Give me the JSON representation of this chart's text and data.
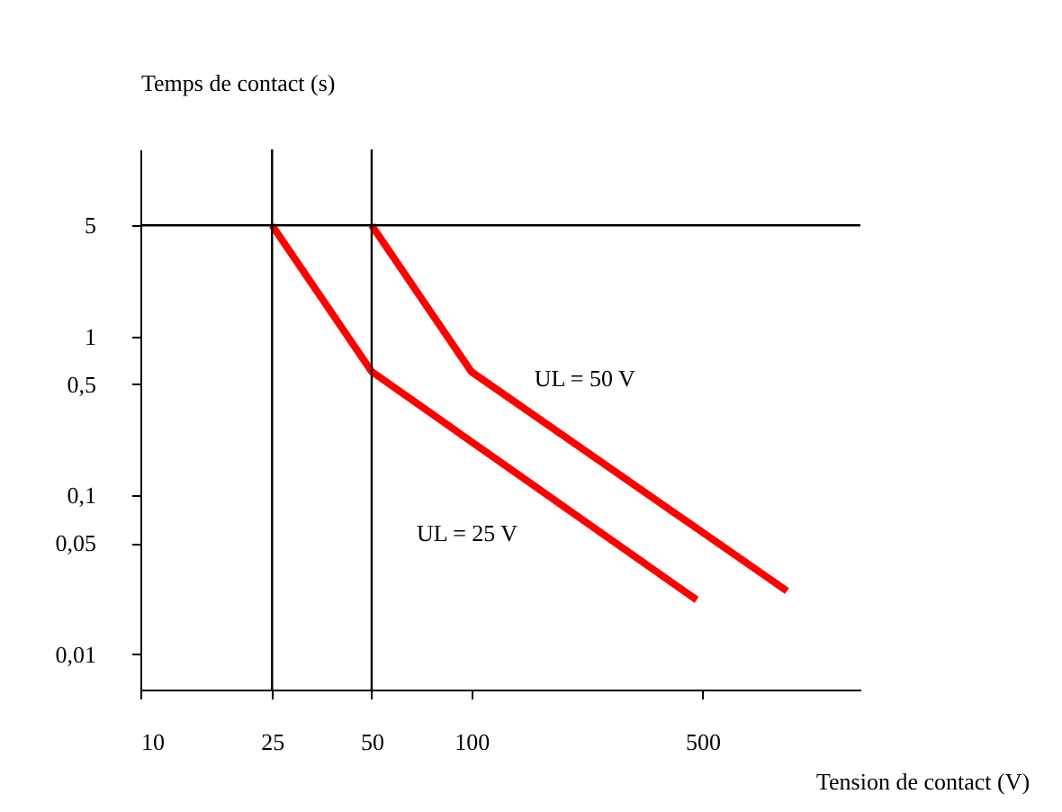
{
  "chart_data": {
    "type": "line",
    "xlabel": "Tension de contact (V)",
    "ylabel": "Temps de contact (s)",
    "log": "xy",
    "xlim": [
      10,
      1500
    ],
    "xticks": [
      10,
      25,
      50,
      100,
      500
    ],
    "ylim": [
      0.006,
      15
    ],
    "yticks": [
      {
        "value": 0.01,
        "label": "0,01"
      },
      {
        "value": 0.05,
        "label": "0,05"
      },
      {
        "value": 0.1,
        "label": "0,1"
      },
      {
        "value": 0.5,
        "label": "0,5"
      },
      1,
      5
    ],
    "series": [
      {
        "name": "UL = 25 V",
        "color": "#ff0000",
        "x": [
          25,
          50,
          480
        ],
        "values": [
          5,
          0.6,
          0.022
        ]
      },
      {
        "name": "UL = 50 V",
        "color": "#ff0000",
        "x": [
          50,
          100,
          900
        ],
        "values": [
          5,
          0.6,
          0.025
        ]
      }
    ],
    "ref_lines": [
      {
        "axis": "x",
        "value": 25,
        "color": "#000000"
      },
      {
        "axis": "x",
        "value": 50,
        "color": "#000000"
      },
      {
        "axis": "y",
        "value": 5,
        "color": "#000000"
      }
    ],
    "grid": false,
    "marker": "none",
    "line_style": "solid"
  }
}
